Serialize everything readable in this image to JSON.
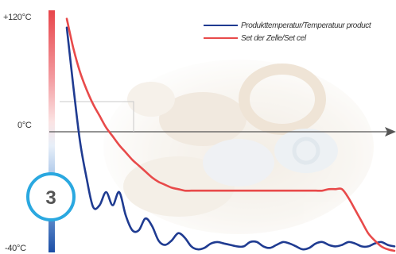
{
  "badge": {
    "number": "3",
    "color": "#2aa8e0"
  },
  "chart_data": {
    "type": "line",
    "title": "",
    "xlabel": "",
    "ylabel": "",
    "ylim": [
      -40,
      120
    ],
    "y_ticks": [
      {
        "value": 120,
        "label": "+120°C"
      },
      {
        "value": 0,
        "label": "0°C"
      },
      {
        "value": -40,
        "label": "-40°C"
      }
    ],
    "x": [
      0,
      2,
      4,
      6,
      8,
      10,
      12,
      14,
      16,
      18,
      20,
      22,
      24,
      26,
      28,
      30,
      32,
      34,
      36,
      38,
      40,
      42,
      44,
      46,
      48,
      50,
      52,
      54,
      56,
      58,
      60,
      62,
      64,
      66,
      68,
      70,
      72,
      74,
      76,
      78,
      80,
      82,
      84,
      86,
      88,
      90,
      92,
      94,
      96,
      98,
      100
    ],
    "series": [
      {
        "name": "Produkttemperatur/Temperatuur product",
        "color": "#1f3b91",
        "values": [
          112,
          72,
          35,
          10,
          -10,
          -9,
          0,
          -9,
          0,
          -16,
          -26,
          -26,
          -18,
          -23,
          -33,
          -36,
          -33,
          -28,
          -31,
          -37,
          -39,
          -38,
          -35,
          -34,
          -35,
          -36,
          -37,
          -37,
          -34,
          -34,
          -37,
          -38,
          -36,
          -34,
          -35,
          -37,
          -39,
          -38,
          -35,
          -34,
          -36,
          -37,
          -36,
          -34,
          -35,
          -37,
          -37,
          -35,
          -34,
          -36,
          -37
        ]
      },
      {
        "name": "Set der Zelle/Set cel",
        "color": "#e84a4a",
        "values": [
          118,
          98,
          82,
          70,
          60,
          52,
          44,
          38,
          32,
          27,
          22,
          18,
          14,
          10,
          7,
          5,
          3,
          2,
          1,
          1,
          1,
          1,
          1,
          1,
          1,
          1,
          1,
          1,
          1,
          1,
          1,
          1,
          1,
          1,
          1,
          1,
          1,
          1,
          1,
          1,
          2,
          2,
          2,
          -4,
          -12,
          -20,
          -28,
          -33,
          -37,
          -39,
          -40
        ]
      }
    ],
    "legend_position": "top-right",
    "grid": false,
    "x_axis_arrow": true
  }
}
